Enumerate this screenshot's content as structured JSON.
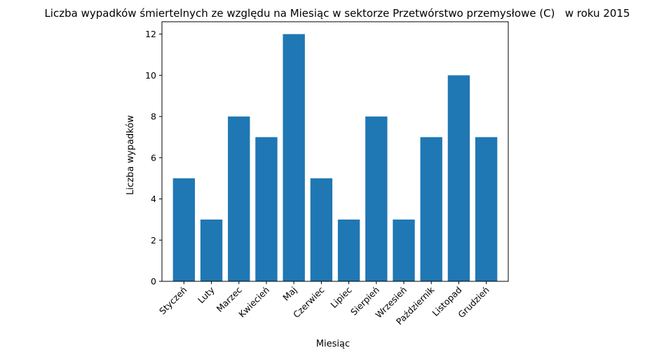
{
  "chart_data": {
    "type": "bar",
    "title": "Liczba wypadków śmiertelnych ze względu na Miesiąc w sektorze Przetwórstwo przemysłowe (C)   w roku 2015",
    "xlabel": "Miesiąc",
    "ylabel": "Liczba wypadków",
    "categories": [
      "Styczeń",
      "Luty",
      "Marzec",
      "Kwiecień",
      "Maj",
      "Czerwiec",
      "Lipiec",
      "Sierpień",
      "Wrzesień",
      "Październik",
      "Listopad",
      "Grudzień"
    ],
    "values": [
      5,
      3,
      8,
      7,
      12,
      5,
      3,
      8,
      3,
      7,
      10,
      7
    ],
    "ylim": [
      0,
      12.6
    ],
    "yticks": [
      0,
      2,
      4,
      6,
      8,
      10,
      12
    ],
    "bar_color": "#1f77b4",
    "grid": false,
    "legend": "none"
  }
}
